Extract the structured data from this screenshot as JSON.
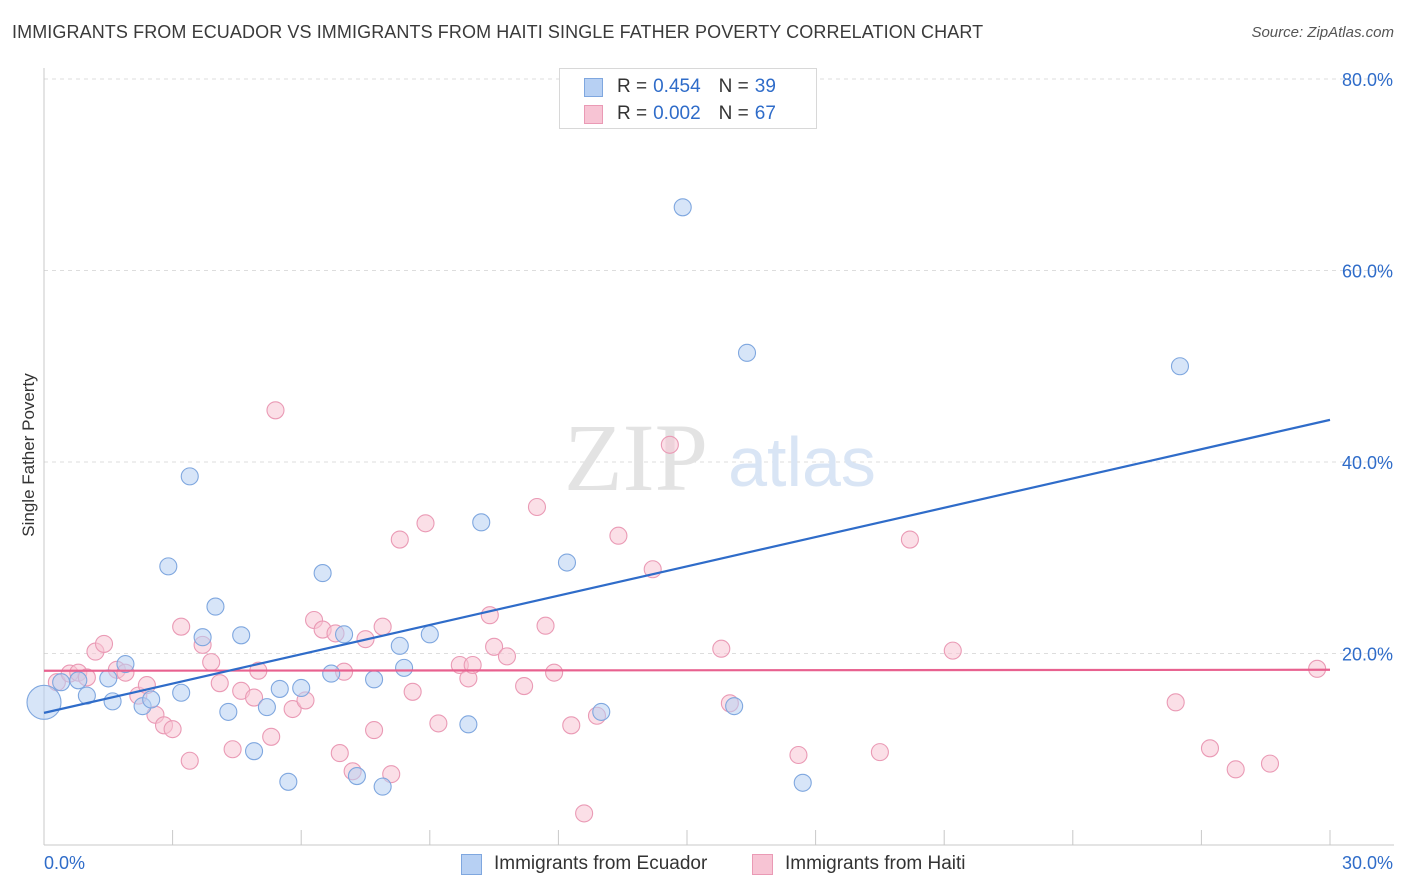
{
  "title": "IMMIGRANTS FROM ECUADOR VS IMMIGRANTS FROM HAITI SINGLE FATHER POVERTY CORRELATION CHART",
  "source": "Source: ZipAtlas.com",
  "watermark": {
    "zip": "ZIP",
    "atlas": "atlas"
  },
  "legend": {
    "r_label": "R =",
    "n_label": "N =",
    "rows": [
      {
        "r": "0.454",
        "n": "39"
      },
      {
        "r": "0.002",
        "n": "67"
      }
    ]
  },
  "colors": {
    "ecuador_fill": "#b7d0f3",
    "ecuador_stroke": "#7fa7df",
    "ecuador_line": "#2f6cc9",
    "haiti_fill": "#f7c4d4",
    "haiti_stroke": "#ea9ab5",
    "haiti_line": "#e8618f",
    "grid": "#dddddd",
    "tick_text": "#2f6cc9"
  },
  "chart_data": {
    "type": "scatter",
    "title": "IMMIGRANTS FROM ECUADOR VS IMMIGRANTS FROM HAITI SINGLE FATHER POVERTY CORRELATION CHART",
    "xlabel": "",
    "ylabel": "Single Father Poverty",
    "xlim": [
      0,
      30
    ],
    "ylim": [
      0,
      80
    ],
    "x_tick_labels": [
      "0.0%",
      "30.0%"
    ],
    "y_ticks": [
      20,
      40,
      60,
      80
    ],
    "y_tick_labels": [
      "20.0%",
      "40.0%",
      "60.0%",
      "80.0%"
    ],
    "grid": true,
    "legend_position": "top-center",
    "series": [
      {
        "name": "Immigrants from Ecuador",
        "r": 0.454,
        "n": 39,
        "trend": {
          "x": [
            0,
            30
          ],
          "y": [
            13.8,
            44.4
          ]
        },
        "points": [
          [
            0.0,
            14.9
          ],
          [
            0.4,
            17.0
          ],
          [
            0.8,
            17.2
          ],
          [
            1.0,
            15.6
          ],
          [
            1.5,
            17.4
          ],
          [
            1.6,
            15.0
          ],
          [
            1.9,
            18.9
          ],
          [
            2.3,
            14.5
          ],
          [
            2.5,
            15.2
          ],
          [
            2.9,
            29.1
          ],
          [
            3.2,
            15.9
          ],
          [
            3.4,
            38.5
          ],
          [
            3.7,
            21.7
          ],
          [
            4.0,
            24.9
          ],
          [
            4.3,
            13.9
          ],
          [
            4.6,
            21.9
          ],
          [
            4.9,
            9.8
          ],
          [
            5.2,
            14.4
          ],
          [
            5.5,
            16.3
          ],
          [
            5.7,
            6.6
          ],
          [
            6.0,
            16.4
          ],
          [
            6.5,
            28.4
          ],
          [
            6.7,
            17.9
          ],
          [
            7.0,
            22.0
          ],
          [
            7.3,
            7.2
          ],
          [
            7.7,
            17.3
          ],
          [
            7.9,
            6.1
          ],
          [
            8.3,
            20.8
          ],
          [
            8.4,
            18.5
          ],
          [
            9.0,
            22.0
          ],
          [
            9.9,
            12.6
          ],
          [
            10.2,
            33.7
          ],
          [
            12.2,
            29.5
          ],
          [
            13.0,
            13.9
          ],
          [
            14.9,
            66.6
          ],
          [
            16.1,
            14.5
          ],
          [
            16.4,
            51.4
          ],
          [
            17.7,
            6.5
          ],
          [
            26.5,
            50.0
          ]
        ]
      },
      {
        "name": "Immigrants from Haiti",
        "r": 0.002,
        "n": 67,
        "trend": {
          "x": [
            0,
            30
          ],
          "y": [
            18.2,
            18.3
          ]
        },
        "points": [
          [
            0.3,
            17.0
          ],
          [
            0.6,
            17.9
          ],
          [
            0.8,
            18.0
          ],
          [
            1.0,
            17.5
          ],
          [
            1.2,
            20.2
          ],
          [
            1.4,
            21.0
          ],
          [
            1.7,
            18.3
          ],
          [
            1.9,
            18.0
          ],
          [
            2.2,
            15.6
          ],
          [
            2.4,
            16.7
          ],
          [
            2.6,
            13.6
          ],
          [
            2.8,
            12.5
          ],
          [
            3.0,
            12.1
          ],
          [
            3.2,
            22.8
          ],
          [
            3.4,
            8.8
          ],
          [
            3.7,
            20.9
          ],
          [
            3.9,
            19.1
          ],
          [
            4.1,
            16.9
          ],
          [
            4.4,
            10.0
          ],
          [
            4.6,
            16.1
          ],
          [
            4.9,
            15.4
          ],
          [
            5.0,
            18.2
          ],
          [
            5.3,
            11.3
          ],
          [
            5.4,
            45.4
          ],
          [
            5.8,
            14.2
          ],
          [
            6.1,
            15.1
          ],
          [
            6.3,
            23.5
          ],
          [
            6.5,
            22.5
          ],
          [
            6.8,
            22.1
          ],
          [
            6.9,
            9.6
          ],
          [
            7.0,
            18.1
          ],
          [
            7.2,
            7.7
          ],
          [
            7.5,
            21.5
          ],
          [
            7.7,
            12.0
          ],
          [
            7.9,
            22.8
          ],
          [
            8.1,
            7.4
          ],
          [
            8.3,
            31.9
          ],
          [
            8.6,
            16.0
          ],
          [
            8.9,
            33.6
          ],
          [
            9.2,
            12.7
          ],
          [
            9.7,
            18.8
          ],
          [
            9.9,
            17.4
          ],
          [
            10.0,
            18.8
          ],
          [
            10.4,
            24.0
          ],
          [
            10.5,
            20.7
          ],
          [
            10.8,
            19.7
          ],
          [
            11.2,
            16.6
          ],
          [
            11.5,
            35.3
          ],
          [
            11.7,
            22.9
          ],
          [
            11.9,
            18.0
          ],
          [
            12.3,
            12.5
          ],
          [
            12.6,
            3.3
          ],
          [
            12.9,
            13.5
          ],
          [
            13.4,
            32.3
          ],
          [
            14.2,
            28.8
          ],
          [
            14.6,
            41.8
          ],
          [
            15.8,
            20.5
          ],
          [
            16.0,
            14.8
          ],
          [
            17.6,
            9.4
          ],
          [
            19.5,
            9.7
          ],
          [
            20.2,
            31.9
          ],
          [
            21.2,
            20.3
          ],
          [
            26.4,
            14.9
          ],
          [
            27.2,
            10.1
          ],
          [
            27.8,
            7.9
          ],
          [
            28.6,
            8.5
          ],
          [
            29.7,
            18.4
          ]
        ]
      }
    ]
  }
}
